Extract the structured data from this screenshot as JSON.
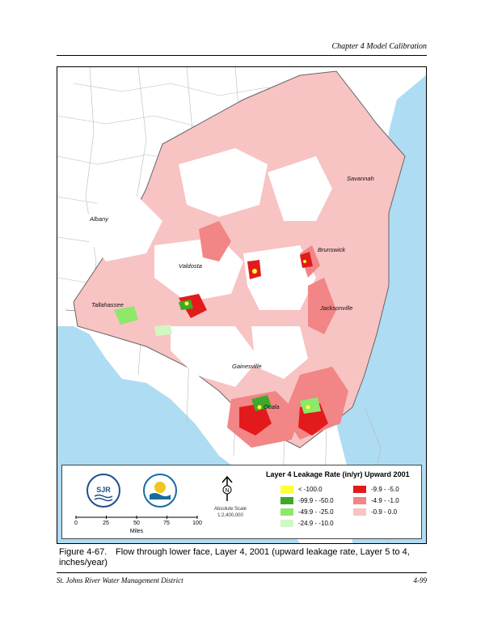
{
  "header": {
    "chapter": "Chapter 4 Model Calibration"
  },
  "map": {
    "cities": [
      "Savannah",
      "Albany",
      "Brunswick",
      "Valdosta",
      "Tallahassee",
      "Jacksonville",
      "Gainesville",
      "Ocala"
    ],
    "colors": {
      "ocean": "#aedcf2",
      "land": "#ffffff",
      "lines": "#b8b8b8"
    }
  },
  "legend": {
    "title": "Layer 4 Leakage Rate (in/yr) Upward 2001",
    "north_label": "N",
    "scale_text": "Absolute Scale",
    "scale_ratio": "1:2,400,000",
    "scale_ticks": [
      "0",
      "25",
      "50",
      "75",
      "100"
    ],
    "scale_units": "Miles",
    "logo1_text": "SJR",
    "logo2_text": "SJRWMD",
    "items": [
      {
        "label": "< -100.0",
        "color": "#ffff33"
      },
      {
        "label": "-99.9 - -50.0",
        "color": "#3ea82a"
      },
      {
        "label": "-49.9 - -25.0",
        "color": "#8ee86a"
      },
      {
        "label": "-24.9 - -10.0",
        "color": "#d2f7c2"
      },
      {
        "label": "-9.9 - -5.0",
        "color": "#e31a1c"
      },
      {
        "label": "-4.9 - -1.0",
        "color": "#f28585"
      },
      {
        "label": "-0.9 - 0.0",
        "color": "#f8c3c3"
      }
    ]
  },
  "caption": {
    "number": "Figure 4-67.",
    "text": "Flow through lower face, Layer 4, 2001 (upward leakage rate, Layer 5 to 4, inches/year)"
  },
  "footer": {
    "left": "St. Johns River Water Management District",
    "right": "4-99"
  }
}
